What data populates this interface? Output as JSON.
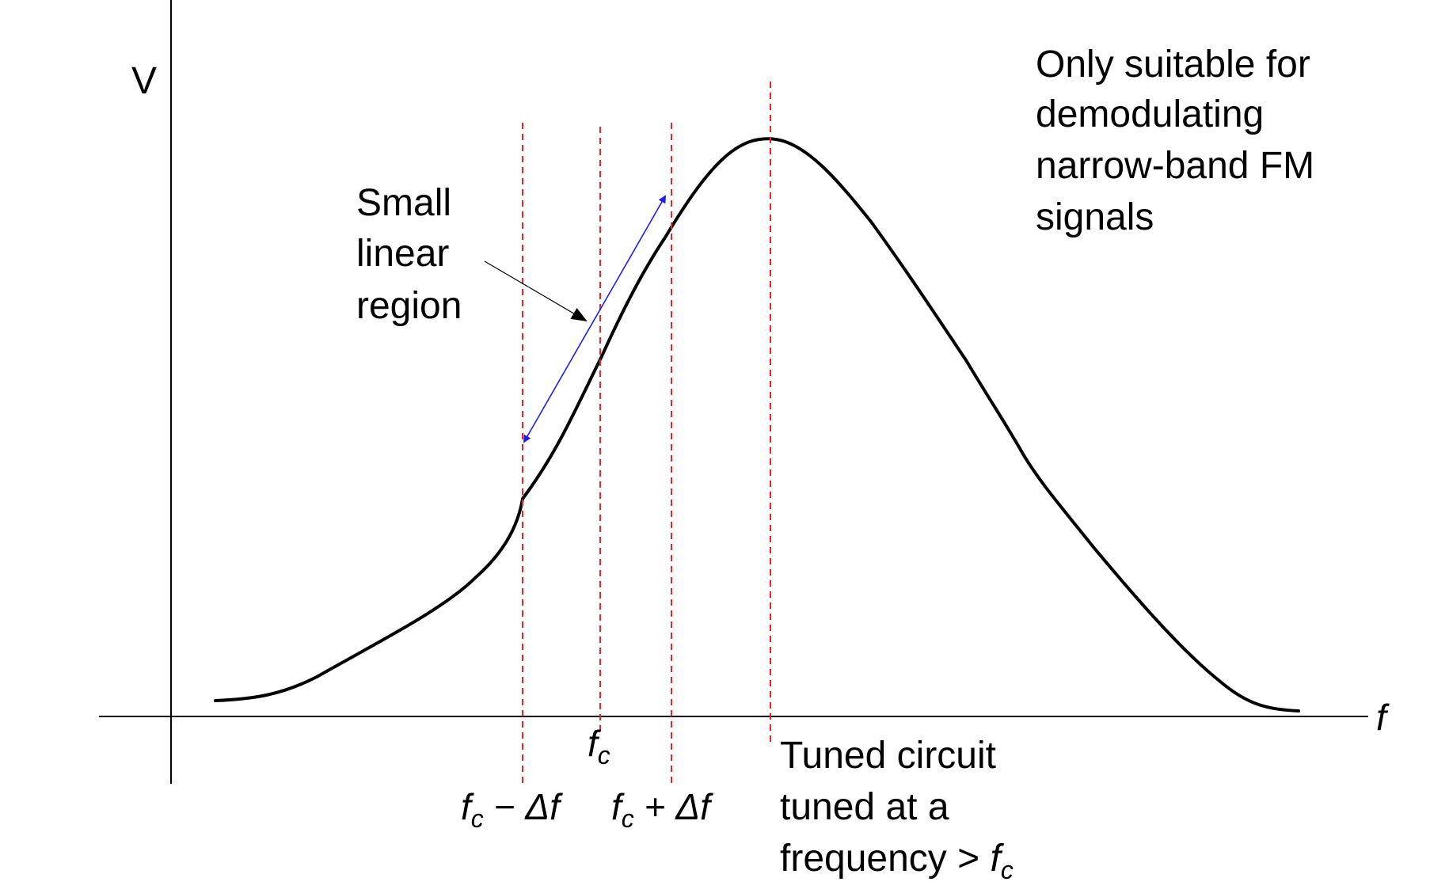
{
  "axes": {
    "y_label": "V",
    "x_label": "f"
  },
  "labels": {
    "small_linear_region": [
      "Small",
      "linear",
      "region"
    ],
    "note": [
      "Only suitable for",
      "demodulating",
      "narrow-band FM",
      "signals"
    ],
    "fc": {
      "base": "f",
      "sub": "c"
    },
    "fc_minus": {
      "base": "f",
      "sub": "c",
      "rest": " − Δf"
    },
    "fc_plus": {
      "base": "f",
      "sub": "c",
      "rest": " + Δf"
    },
    "tuned": [
      "Tuned circuit",
      "tuned at a",
      "frequency > "
    ],
    "tuned_fc": {
      "base": "f",
      "sub": "c"
    }
  },
  "colors": {
    "curve": "#000000",
    "axis": "#000000",
    "guide_lines": "#e8252a",
    "linear_arrow": "#1f1fe6",
    "pointer_arrow": "#000000"
  }
}
